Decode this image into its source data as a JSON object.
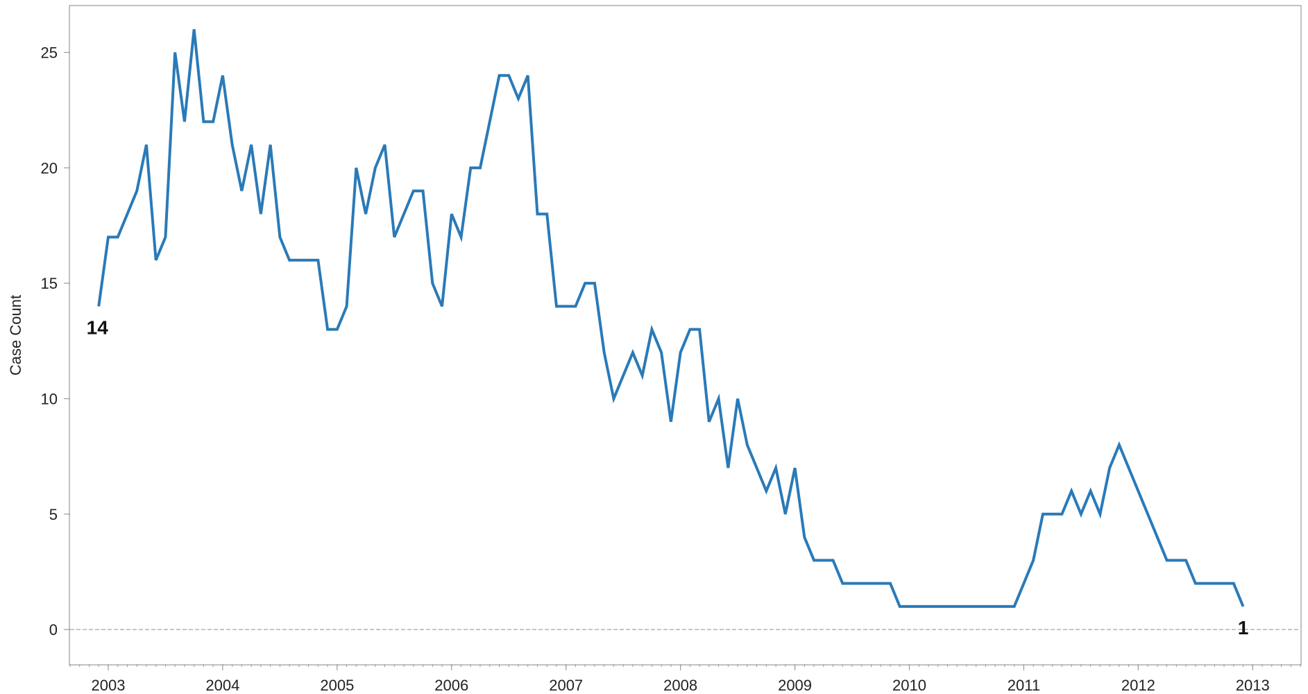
{
  "chart_data": {
    "type": "line",
    "title": "",
    "xlabel": "",
    "ylabel": "Case Count",
    "xlim": [
      "2002-09-01",
      "2013-06-01"
    ],
    "ylim": [
      -1.5,
      27
    ],
    "x_ticks": [
      "2003",
      "2004",
      "2005",
      "2006",
      "2007",
      "2008",
      "2009",
      "2010",
      "2011",
      "2012",
      "2013"
    ],
    "y_ticks": [
      0,
      5,
      10,
      15,
      20,
      25
    ],
    "grid": false,
    "reference_line": {
      "y": 0,
      "style": "dashed",
      "color": "#b5b5b5"
    },
    "colors": {
      "line": "#2a7ab8",
      "axis": "#9a9a9a",
      "text": "#222222"
    },
    "start_label": "14",
    "end_label": "1",
    "series": [
      {
        "x": [
          "2002-12",
          "2003-01",
          "2003-02",
          "2003-03",
          "2003-04",
          "2003-05",
          "2003-06",
          "2003-07",
          "2003-08",
          "2003-09",
          "2003-10",
          "2003-11",
          "2003-12",
          "2004-01",
          "2004-02",
          "2004-03",
          "2004-04",
          "2004-05",
          "2004-06",
          "2004-07",
          "2004-08",
          "2004-09",
          "2004-10",
          "2004-11",
          "2004-12",
          "2005-01",
          "2005-02",
          "2005-03",
          "2005-04",
          "2005-05",
          "2005-06",
          "2005-07",
          "2005-08",
          "2005-09",
          "2005-10",
          "2005-11",
          "2005-12",
          "2006-01",
          "2006-02",
          "2006-03",
          "2006-04",
          "2006-05",
          "2006-06",
          "2006-07",
          "2006-08",
          "2006-09",
          "2006-10",
          "2006-11",
          "2006-12",
          "2007-01",
          "2007-02",
          "2007-03",
          "2007-04",
          "2007-05",
          "2007-06",
          "2007-07",
          "2007-08",
          "2007-09",
          "2007-10",
          "2007-11",
          "2007-12",
          "2008-01",
          "2008-02",
          "2008-03",
          "2008-04",
          "2008-05",
          "2008-06",
          "2008-07",
          "2008-08",
          "2008-09",
          "2008-10",
          "2008-11",
          "2008-12",
          "2009-01",
          "2009-02",
          "2009-03",
          "2009-04",
          "2009-05",
          "2009-06",
          "2009-07",
          "2009-08",
          "2009-09",
          "2009-10",
          "2009-11",
          "2009-12",
          "2010-01",
          "2010-02",
          "2010-03",
          "2010-04",
          "2010-05",
          "2010-06",
          "2010-07",
          "2010-08",
          "2010-09",
          "2010-10",
          "2010-11",
          "2010-12",
          "2011-01",
          "2011-02",
          "2011-03",
          "2011-04",
          "2011-05",
          "2011-06",
          "2011-07",
          "2011-08",
          "2011-09",
          "2011-10",
          "2011-11",
          "2011-12",
          "2012-01",
          "2012-02",
          "2012-03",
          "2012-04",
          "2012-05",
          "2012-06",
          "2012-07",
          "2012-08",
          "2012-09",
          "2012-10",
          "2012-11",
          "2012-12"
        ],
        "values": [
          14,
          17,
          17,
          18,
          19,
          21,
          16,
          17,
          25,
          22,
          26,
          22,
          22,
          24,
          21,
          19,
          21,
          18,
          21,
          17,
          16,
          16,
          16,
          16,
          13,
          13,
          14,
          20,
          18,
          20,
          21,
          17,
          18,
          19,
          19,
          15,
          14,
          18,
          17,
          20,
          20,
          22,
          24,
          24,
          23,
          24,
          18,
          18,
          14,
          14,
          14,
          15,
          15,
          12,
          10,
          11,
          12,
          11,
          13,
          12,
          9,
          12,
          13,
          13,
          9,
          10,
          7,
          10,
          8,
          7,
          6,
          7,
          5,
          7,
          4,
          3,
          3,
          3,
          2,
          2,
          2,
          2,
          2,
          2,
          1,
          1,
          1,
          1,
          1,
          1,
          1,
          1,
          1,
          1,
          1,
          1,
          1,
          2,
          3,
          5,
          5,
          5,
          6,
          5,
          6,
          5,
          7,
          8,
          7,
          6,
          5,
          4,
          3,
          3,
          3,
          2,
          2,
          2,
          2,
          2,
          1
        ]
      }
    ]
  }
}
